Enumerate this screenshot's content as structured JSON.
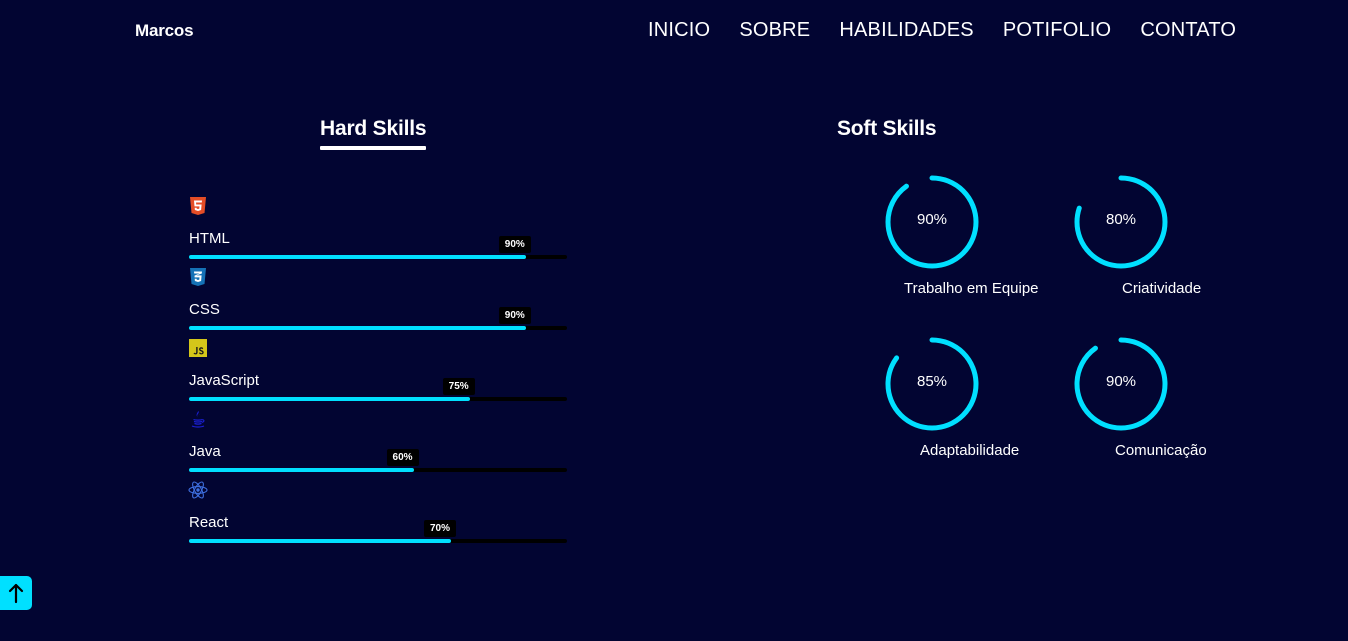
{
  "header": {
    "brand": "Marcos",
    "nav": [
      "INICIO",
      "SOBRE",
      "HABILIDADES",
      "POTIFOLIO",
      "CONTATO"
    ]
  },
  "hard_skills": {
    "title": "Hard Skills",
    "items": [
      {
        "name": "HTML",
        "percent": 90,
        "percent_label": "90%",
        "icon": "html5-icon",
        "color": "#e44d26"
      },
      {
        "name": "CSS",
        "percent": 90,
        "percent_label": "90%",
        "icon": "css3-icon",
        "color": "#1572b6"
      },
      {
        "name": "JavaScript",
        "percent": 75,
        "percent_label": "75%",
        "icon": "javascript-icon",
        "color": "#d4c61a"
      },
      {
        "name": "Java",
        "percent": 60,
        "percent_label": "60%",
        "icon": "java-icon",
        "color": "#1a1fd0"
      },
      {
        "name": "React",
        "percent": 70,
        "percent_label": "70%",
        "icon": "react-icon",
        "color": "#3e6fe0"
      }
    ]
  },
  "soft_skills": {
    "title": "Soft Skills",
    "items": [
      {
        "name": "Trabalho em Equipe",
        "percent": 90,
        "percent_label": "90%"
      },
      {
        "name": "Criatividade",
        "percent": 80,
        "percent_label": "80%"
      },
      {
        "name": "Adaptabilidade",
        "percent": 85,
        "percent_label": "85%"
      },
      {
        "name": "Comunicação",
        "percent": 90,
        "percent_label": "90%"
      }
    ]
  },
  "colors": {
    "background": "#020532",
    "accent": "#00e0ff",
    "track": "#000000"
  },
  "back_to_top_icon": "arrow-up-icon"
}
